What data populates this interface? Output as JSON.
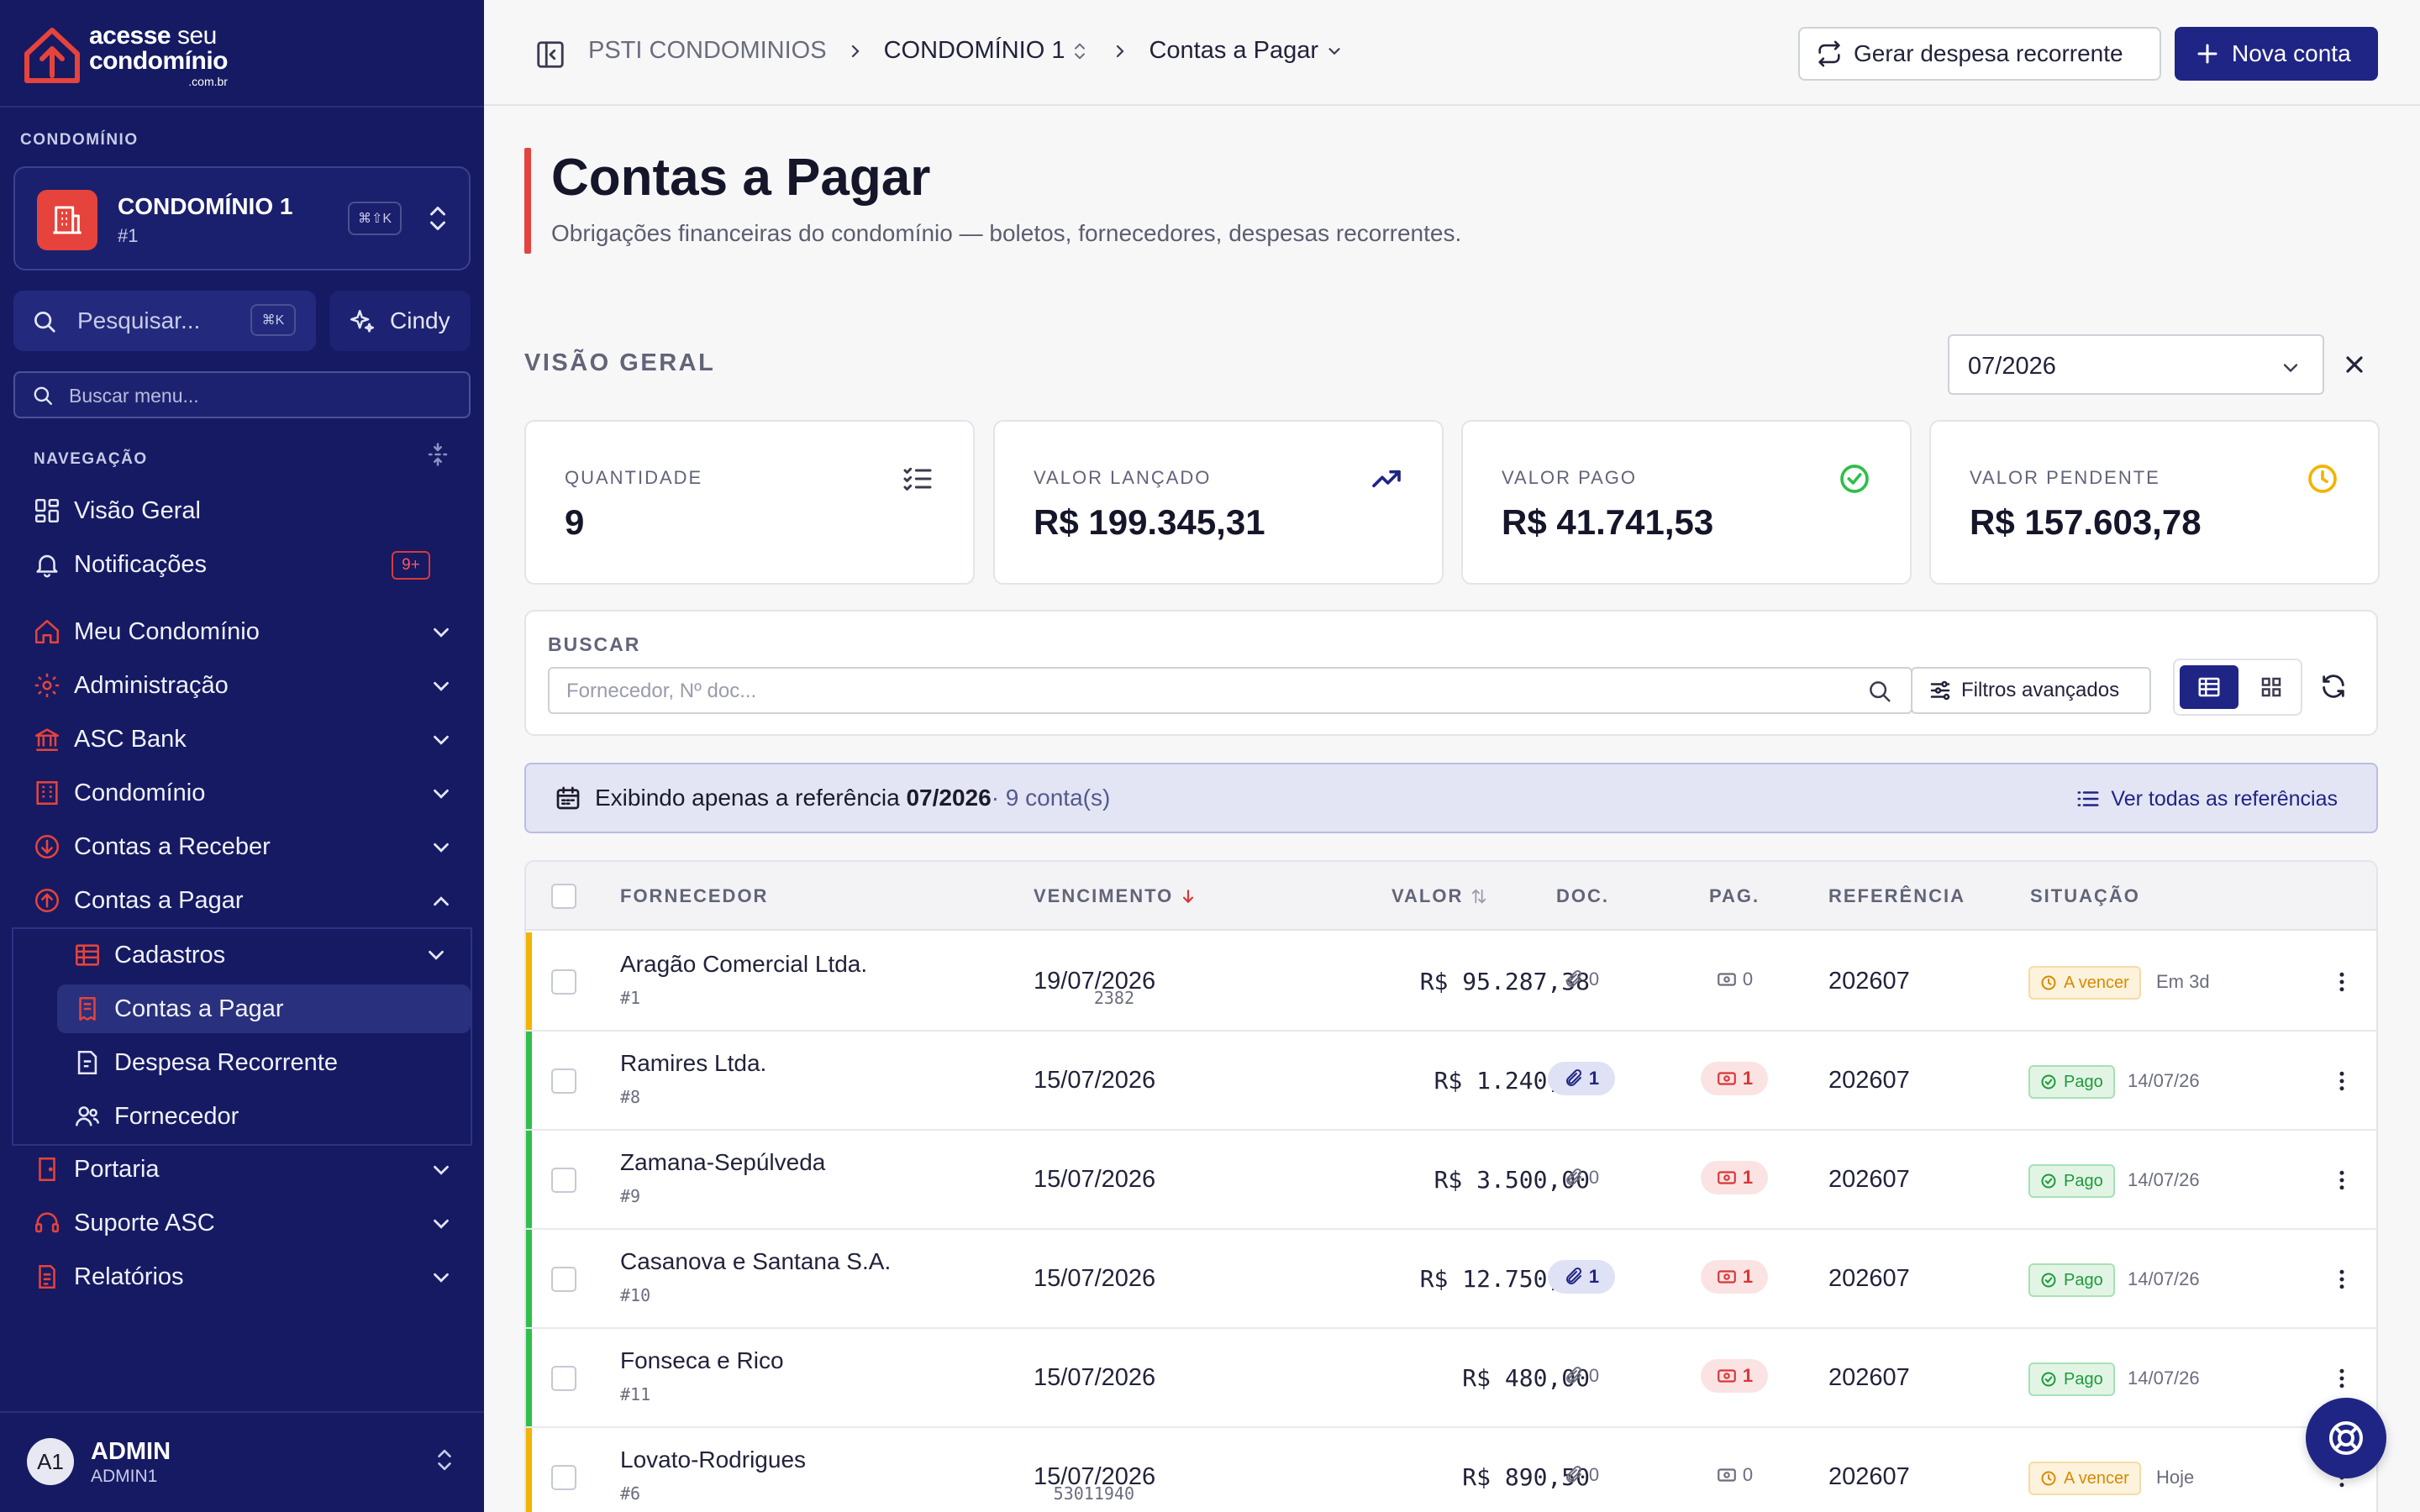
{
  "sidebar": {
    "logo": {
      "line1a": "acesse",
      "line1b": "seu",
      "line2": "condomínio",
      "line3": ".com.br"
    },
    "condo_section": "CONDOMÍNIO",
    "condo": {
      "name": "CONDOMÍNIO 1",
      "id": "#1",
      "shortcut": "⌘⇧K"
    },
    "search": {
      "placeholder": "Pesquisar...",
      "shortcut": "⌘K"
    },
    "cindy": "Cindy",
    "menu_search_placeholder": "Buscar menu...",
    "nav_section": "NAVEGAÇÃO",
    "items": [
      {
        "label": "Visão Geral",
        "icon": "grid-icon"
      },
      {
        "label": "Notificações",
        "icon": "bell-icon",
        "badge": "9+"
      },
      {
        "label": "Meu Condomínio",
        "icon": "home-icon"
      },
      {
        "label": "Administração",
        "icon": "gear-icon"
      },
      {
        "label": "ASC Bank",
        "icon": "bank-icon"
      },
      {
        "label": "Condomínio",
        "icon": "building-icon"
      },
      {
        "label": "Contas a Receber",
        "icon": "arrow-down-circle-icon"
      },
      {
        "label": "Contas a Pagar",
        "icon": "arrow-up-circle-icon"
      }
    ],
    "sub_items": [
      {
        "label": "Cadastros",
        "icon": "table-icon"
      },
      {
        "label": "Contas a Pagar",
        "icon": "bill-icon"
      },
      {
        "label": "Despesa Recorrente",
        "icon": "recurring-doc-icon"
      },
      {
        "label": "Fornecedor",
        "icon": "users-icon"
      }
    ],
    "items_after": [
      {
        "label": "Portaria",
        "icon": "door-icon"
      },
      {
        "label": "Suporte ASC",
        "icon": "support-icon"
      },
      {
        "label": "Relatórios",
        "icon": "report-icon"
      }
    ],
    "user": {
      "initials": "A1",
      "name": "ADMIN",
      "sub": "ADMIN1"
    }
  },
  "topbar": {
    "breadcrumb": [
      "PSTI CONDOMINIOS",
      "CONDOMÍNIO 1",
      "Contas a Pagar"
    ],
    "recurring_button": "Gerar despesa recorrente",
    "new_button": "Nova conta"
  },
  "page": {
    "title": "Contas a Pagar",
    "subtitle": "Obrigações financeiras do condomínio — boletos, fornecedores, despesas recorrentes.",
    "overview_label": "VISÃO GERAL",
    "period": "07/2026"
  },
  "cards": [
    {
      "label": "QUANTIDADE",
      "value": "9",
      "icon": "checklist-icon"
    },
    {
      "label": "VALOR LANÇADO",
      "value": "R$ 199.345,31",
      "icon": "trending-up-icon"
    },
    {
      "label": "VALOR PAGO",
      "value": "R$ 41.741,53",
      "icon": "check-circle-icon"
    },
    {
      "label": "VALOR PENDENTE",
      "value": "R$ 157.603,78",
      "icon": "clock-icon"
    }
  ],
  "search": {
    "label": "BUSCAR",
    "placeholder": "Fornecedor, Nº doc...",
    "filters_button": "Filtros avançados"
  },
  "banner": {
    "prefix": "Exibindo apenas a referência ",
    "ref": "07/2026",
    "count": "· 9 conta(s)",
    "link": "Ver todas as referências"
  },
  "table": {
    "headers": {
      "fornecedor": "FORNECEDOR",
      "vencimento": "VENCIMENTO",
      "valor": "VALOR",
      "doc": "DOC.",
      "pag": "PAG.",
      "referencia": "REFERÊNCIA",
      "situacao": "SITUAÇÃO"
    },
    "rows": [
      {
        "name": "Aragão Comercial Ltda.",
        "id": "#1",
        "docnum": "2382",
        "venc": "19/07/2026",
        "valor": "R$ 95.287,38",
        "doc": "0",
        "pag": "0",
        "ref": "202607",
        "status": "A vencer",
        "note": "Em 3d",
        "accent": "#f2b400",
        "doc_on": false,
        "pag_on": false
      },
      {
        "name": "Ramires Ltda.",
        "id": "#8",
        "docnum": "",
        "venc": "15/07/2026",
        "valor": "R$ 1.240,00",
        "doc": "1",
        "pag": "1",
        "ref": "202607",
        "status": "Pago",
        "note": "14/07/26",
        "accent": "#2fbf4a",
        "doc_on": true,
        "pag_on": true
      },
      {
        "name": "Zamana-Sepúlveda",
        "id": "#9",
        "docnum": "",
        "venc": "15/07/2026",
        "valor": "R$ 3.500,00",
        "doc": "0",
        "pag": "1",
        "ref": "202607",
        "status": "Pago",
        "note": "14/07/26",
        "accent": "#2fbf4a",
        "doc_on": false,
        "pag_on": true
      },
      {
        "name": "Casanova e Santana S.A.",
        "id": "#10",
        "docnum": "",
        "venc": "15/07/2026",
        "valor": "R$ 12.750,00",
        "doc": "1",
        "pag": "1",
        "ref": "202607",
        "status": "Pago",
        "note": "14/07/26",
        "accent": "#2fbf4a",
        "doc_on": true,
        "pag_on": true
      },
      {
        "name": "Fonseca e Rico",
        "id": "#11",
        "docnum": "",
        "venc": "15/07/2026",
        "valor": "R$ 480,00",
        "doc": "0",
        "pag": "1",
        "ref": "202607",
        "status": "Pago",
        "note": "14/07/26",
        "accent": "#2fbf4a",
        "doc_on": false,
        "pag_on": true
      },
      {
        "name": "Lovato-Rodrigues",
        "id": "#6",
        "docnum": "53011940",
        "venc": "15/07/2026",
        "valor": "R$ 890,50",
        "doc": "0",
        "pag": "0",
        "ref": "202607",
        "status": "A vencer",
        "note": "Hoje",
        "accent": "#f2b400",
        "doc_on": false,
        "pag_on": false
      }
    ]
  },
  "colors": {
    "sidebar": "#151a63",
    "primary": "#1f2585",
    "accent_red": "#e5433b",
    "paid": "#2fbf4a",
    "pending": "#f2b400"
  }
}
